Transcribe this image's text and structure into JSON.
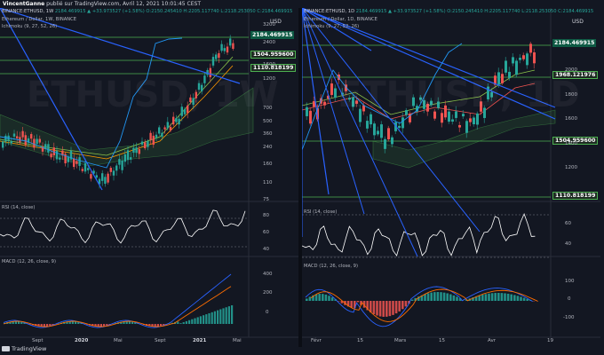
{
  "topbar": {
    "author": "VincentGanne",
    "text": "publié sur TradingView.com, Avril 12, 2021 10:01:45 CEST"
  },
  "left": {
    "header": {
      "symbol": "BINANCE:ETHUSD, 1W",
      "ohlc": "2184.469915 ▲ +33.973527 (+1.58%) O:2150.245410 H:2205.117740 L:2118.253050 C:2184.469915"
    },
    "title": "Ethereum / Dollar, 1W, BINANCE",
    "ichimoku": "Ichimoku (9, 27, 52, 26)",
    "watermark": "ETHUSD, 1W",
    "currency": "USD",
    "price_ticks": [
      "3200",
      "2400",
      "1600",
      "1200",
      "700",
      "500",
      "360",
      "240",
      "160",
      "110",
      "75"
    ],
    "price_tags": [
      "2184.469915",
      "1504.959600",
      "1110.818199"
    ],
    "rsi_label": "RSI (14, close)",
    "rsi_ticks": [
      "80",
      "60",
      "40"
    ],
    "macd_label": "MACD (12, 26, close, 9)",
    "macd_ticks": [
      "400",
      "200",
      "0"
    ],
    "x_ticks": [
      "Sept",
      "2020",
      "Mai",
      "Sept",
      "2021",
      "Mai"
    ]
  },
  "right": {
    "header": {
      "symbol": "BINANCE:ETHUSD, 1D",
      "ohlc": "2184.469915 ▲ +33.973527 (+1.58%) O:2150.245410 H:2205.117740 L:2118.253050 C:2184.469915"
    },
    "title": "Ethereum / Dollar, 1D, BINANCE",
    "ichimoku": "Ichimoku (9, 27, 52, 26)",
    "watermark": "ETHUSD, 1D",
    "currency": "USD",
    "price_ticks": [
      "2000",
      "1800",
      "1600",
      "1400",
      "1200"
    ],
    "price_tags": [
      "2184.469915",
      "1968.121976",
      "1504.959600",
      "1110.818199"
    ],
    "rsi_label": "RSI (14, close)",
    "rsi_ticks": [
      "60",
      "40"
    ],
    "macd_label": "MACD (12, 26, close, 9)",
    "macd_ticks": [
      "100",
      "0",
      "-100"
    ],
    "x_ticks": [
      "Févr",
      "15",
      "Mars",
      "15",
      "Avr",
      "19"
    ]
  },
  "logo_text": "TradingView",
  "colors": {
    "background": "#131722",
    "up": "#26a69a",
    "down": "#ef5350",
    "rsi": "#ffffff",
    "macd": "#2962ff",
    "signal": "#ff6d00",
    "trendline": "#2962ff",
    "support": "#4caf50"
  }
}
